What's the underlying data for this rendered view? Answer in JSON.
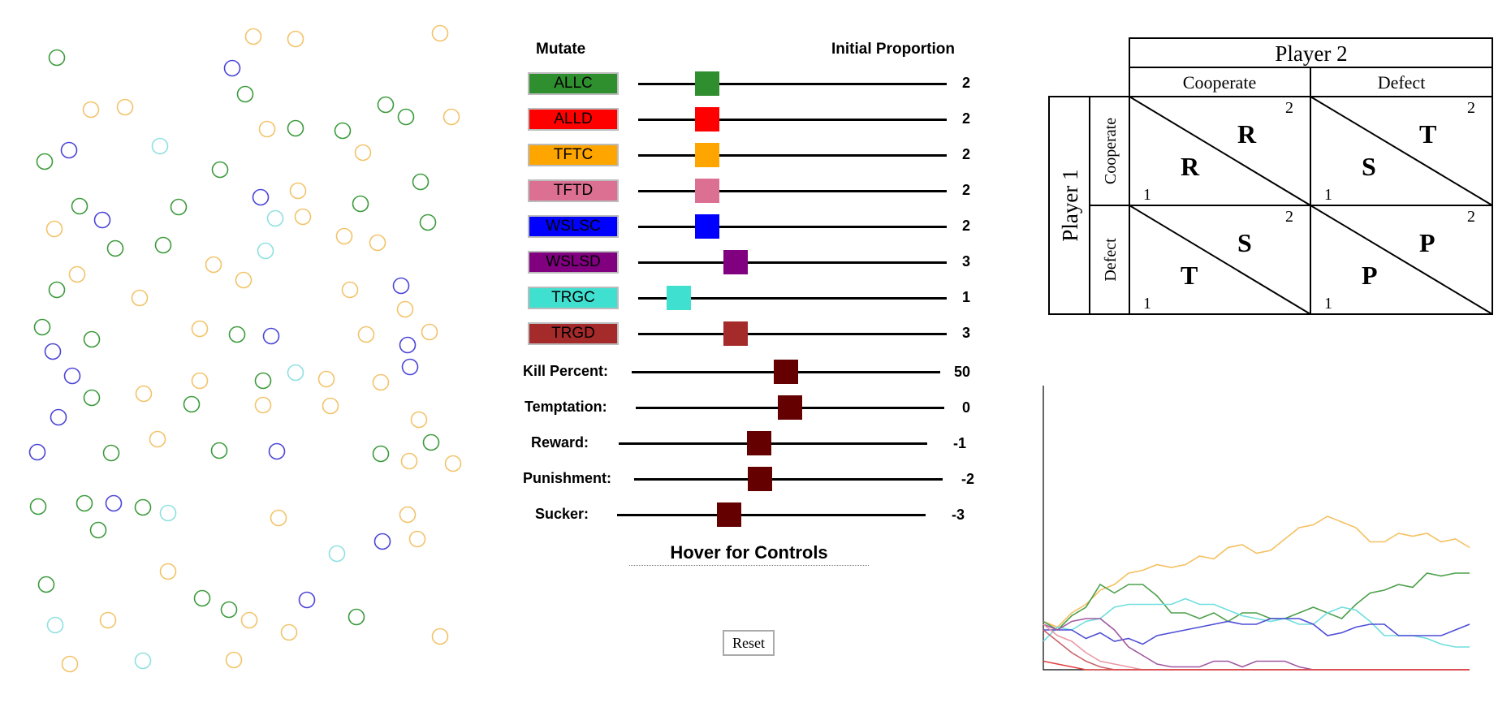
{
  "colors": {
    "allc": "#2f8f2f",
    "alld": "#ff0000",
    "tftc": "#ffa500",
    "tftd": "#db7093",
    "wslsc": "#0000ff",
    "wslsd": "#800080",
    "trgc": "#40e0d0",
    "trgd": "#a52a2a",
    "param_thumb": "#650000"
  },
  "population": {
    "agents": [
      {
        "x": 70,
        "y": 71,
        "c": "g"
      },
      {
        "x": 312,
        "y": 45,
        "c": "o"
      },
      {
        "x": 364,
        "y": 48,
        "c": "o"
      },
      {
        "x": 542,
        "y": 41,
        "c": "o"
      },
      {
        "x": 286,
        "y": 84,
        "c": "b"
      },
      {
        "x": 302,
        "y": 116,
        "c": "g"
      },
      {
        "x": 112,
        "y": 135,
        "c": "o"
      },
      {
        "x": 154,
        "y": 132,
        "c": "o"
      },
      {
        "x": 475,
        "y": 129,
        "c": "g"
      },
      {
        "x": 500,
        "y": 144,
        "c": "g"
      },
      {
        "x": 556,
        "y": 144,
        "c": "o"
      },
      {
        "x": 329,
        "y": 159,
        "c": "o"
      },
      {
        "x": 364,
        "y": 158,
        "c": "g"
      },
      {
        "x": 422,
        "y": 161,
        "c": "g"
      },
      {
        "x": 85,
        "y": 185,
        "c": "b"
      },
      {
        "x": 197,
        "y": 180,
        "c": "t"
      },
      {
        "x": 447,
        "y": 188,
        "c": "o"
      },
      {
        "x": 55,
        "y": 199,
        "c": "g"
      },
      {
        "x": 271,
        "y": 209,
        "c": "g"
      },
      {
        "x": 518,
        "y": 224,
        "c": "g"
      },
      {
        "x": 367,
        "y": 235,
        "c": "o"
      },
      {
        "x": 321,
        "y": 243,
        "c": "b"
      },
      {
        "x": 98,
        "y": 254,
        "c": "g"
      },
      {
        "x": 126,
        "y": 271,
        "c": "b"
      },
      {
        "x": 220,
        "y": 255,
        "c": "g"
      },
      {
        "x": 339,
        "y": 269,
        "c": "t"
      },
      {
        "x": 373,
        "y": 267,
        "c": "o"
      },
      {
        "x": 444,
        "y": 251,
        "c": "g"
      },
      {
        "x": 67,
        "y": 282,
        "c": "o"
      },
      {
        "x": 527,
        "y": 274,
        "c": "g"
      },
      {
        "x": 424,
        "y": 291,
        "c": "o"
      },
      {
        "x": 465,
        "y": 299,
        "c": "o"
      },
      {
        "x": 142,
        "y": 306,
        "c": "g"
      },
      {
        "x": 201,
        "y": 302,
        "c": "g"
      },
      {
        "x": 327,
        "y": 309,
        "c": "t"
      },
      {
        "x": 263,
        "y": 326,
        "c": "o"
      },
      {
        "x": 95,
        "y": 338,
        "c": "o"
      },
      {
        "x": 300,
        "y": 345,
        "c": "o"
      },
      {
        "x": 70,
        "y": 357,
        "c": "g"
      },
      {
        "x": 172,
        "y": 367,
        "c": "o"
      },
      {
        "x": 431,
        "y": 357,
        "c": "o"
      },
      {
        "x": 494,
        "y": 352,
        "c": "b"
      },
      {
        "x": 499,
        "y": 381,
        "c": "o"
      },
      {
        "x": 52,
        "y": 403,
        "c": "g"
      },
      {
        "x": 246,
        "y": 405,
        "c": "o"
      },
      {
        "x": 292,
        "y": 412,
        "c": "g"
      },
      {
        "x": 334,
        "y": 414,
        "c": "b"
      },
      {
        "x": 113,
        "y": 418,
        "c": "g"
      },
      {
        "x": 451,
        "y": 412,
        "c": "o"
      },
      {
        "x": 529,
        "y": 409,
        "c": "o"
      },
      {
        "x": 65,
        "y": 433,
        "c": "b"
      },
      {
        "x": 502,
        "y": 425,
        "c": "b"
      },
      {
        "x": 89,
        "y": 463,
        "c": "b"
      },
      {
        "x": 246,
        "y": 469,
        "c": "o"
      },
      {
        "x": 324,
        "y": 469,
        "c": "g"
      },
      {
        "x": 364,
        "y": 459,
        "c": "t"
      },
      {
        "x": 402,
        "y": 467,
        "c": "o"
      },
      {
        "x": 469,
        "y": 471,
        "c": "o"
      },
      {
        "x": 505,
        "y": 452,
        "c": "b"
      },
      {
        "x": 177,
        "y": 485,
        "c": "o"
      },
      {
        "x": 113,
        "y": 490,
        "c": "g"
      },
      {
        "x": 236,
        "y": 498,
        "c": "g"
      },
      {
        "x": 324,
        "y": 499,
        "c": "o"
      },
      {
        "x": 407,
        "y": 500,
        "c": "o"
      },
      {
        "x": 72,
        "y": 514,
        "c": "b"
      },
      {
        "x": 516,
        "y": 517,
        "c": "o"
      },
      {
        "x": 194,
        "y": 541,
        "c": "o"
      },
      {
        "x": 531,
        "y": 545,
        "c": "g"
      },
      {
        "x": 46,
        "y": 557,
        "c": "b"
      },
      {
        "x": 137,
        "y": 558,
        "c": "g"
      },
      {
        "x": 270,
        "y": 555,
        "c": "g"
      },
      {
        "x": 341,
        "y": 556,
        "c": "b"
      },
      {
        "x": 469,
        "y": 559,
        "c": "g"
      },
      {
        "x": 504,
        "y": 568,
        "c": "o"
      },
      {
        "x": 558,
        "y": 571,
        "c": "o"
      },
      {
        "x": 47,
        "y": 624,
        "c": "g"
      },
      {
        "x": 104,
        "y": 620,
        "c": "g"
      },
      {
        "x": 140,
        "y": 620,
        "c": "b"
      },
      {
        "x": 176,
        "y": 625,
        "c": "g"
      },
      {
        "x": 207,
        "y": 632,
        "c": "t"
      },
      {
        "x": 343,
        "y": 638,
        "c": "o"
      },
      {
        "x": 502,
        "y": 634,
        "c": "o"
      },
      {
        "x": 121,
        "y": 653,
        "c": "g"
      },
      {
        "x": 471,
        "y": 667,
        "c": "b"
      },
      {
        "x": 514,
        "y": 664,
        "c": "o"
      },
      {
        "x": 415,
        "y": 682,
        "c": "t"
      },
      {
        "x": 207,
        "y": 704,
        "c": "o"
      },
      {
        "x": 57,
        "y": 720,
        "c": "g"
      },
      {
        "x": 249,
        "y": 737,
        "c": "g"
      },
      {
        "x": 378,
        "y": 739,
        "c": "b"
      },
      {
        "x": 282,
        "y": 751,
        "c": "g"
      },
      {
        "x": 68,
        "y": 770,
        "c": "t"
      },
      {
        "x": 133,
        "y": 764,
        "c": "o"
      },
      {
        "x": 307,
        "y": 764,
        "c": "o"
      },
      {
        "x": 439,
        "y": 760,
        "c": "g"
      },
      {
        "x": 356,
        "y": 779,
        "c": "o"
      },
      {
        "x": 542,
        "y": 784,
        "c": "o"
      },
      {
        "x": 86,
        "y": 818,
        "c": "o"
      },
      {
        "x": 176,
        "y": 814,
        "c": "t"
      },
      {
        "x": 288,
        "y": 813,
        "c": "o"
      }
    ],
    "palette": {
      "g": "#3c9a3c",
      "o": "#f2c36a",
      "b": "#4a45d6",
      "t": "#8fe0e0"
    }
  },
  "controls": {
    "mutate_label": "Mutate",
    "initial_proportion_label": "Initial Proportion",
    "strategies": [
      {
        "key": "allc",
        "label": "ALLC",
        "value": "2",
        "fraction": 0.2
      },
      {
        "key": "alld",
        "label": "ALLD",
        "value": "2",
        "fraction": 0.2
      },
      {
        "key": "tftc",
        "label": "TFTC",
        "value": "2",
        "fraction": 0.2
      },
      {
        "key": "tftd",
        "label": "TFTD",
        "value": "2",
        "fraction": 0.2
      },
      {
        "key": "wslsc",
        "label": "WSLSC",
        "value": "2",
        "fraction": 0.2
      },
      {
        "key": "wslsd",
        "label": "WSLSD",
        "value": "3",
        "fraction": 0.3
      },
      {
        "key": "trgc",
        "label": "TRGC",
        "value": "1",
        "fraction": 0.1
      },
      {
        "key": "trgd",
        "label": "TRGD",
        "value": "3",
        "fraction": 0.3
      }
    ],
    "params": [
      {
        "key": "kill",
        "label": "Kill Percent:",
        "value": "50",
        "fraction": 0.5
      },
      {
        "key": "temptation",
        "label": "Temptation:",
        "value": "0",
        "fraction": 0.5
      },
      {
        "key": "reward",
        "label": "Reward:",
        "value": "-1",
        "fraction": 0.45
      },
      {
        "key": "punishment",
        "label": "Punishment:",
        "value": "-2",
        "fraction": 0.4
      },
      {
        "key": "sucker",
        "label": "Sucker:",
        "value": "-3",
        "fraction": 0.35
      }
    ],
    "hover_label": "Hover for Controls",
    "reset_label": "Reset"
  },
  "payoff_matrix": {
    "player2": "Player 2",
    "player1": "Player 1",
    "col_labels": [
      "Cooperate",
      "Defect"
    ],
    "row_labels": [
      "Cooperate",
      "Defect"
    ],
    "cells": [
      [
        {
          "p1": "R",
          "p2": "R"
        },
        {
          "p1": "S",
          "p2": "T"
        }
      ],
      [
        {
          "p1": "T",
          "p2": "S"
        },
        {
          "p1": "P",
          "p2": "P"
        }
      ]
    ],
    "corner_p1": "1",
    "corner_p2": "2"
  },
  "chart_data": {
    "type": "line",
    "x": [
      0,
      1,
      2,
      3,
      4,
      5,
      6,
      7,
      8,
      9,
      10,
      11,
      12,
      13,
      14,
      15,
      16,
      17,
      18,
      19,
      20,
      21,
      22,
      23,
      24,
      25,
      26,
      27,
      28,
      29,
      30
    ],
    "ylim": [
      0,
      1
    ],
    "series": [
      {
        "key": "tftc",
        "color": "#f5c060",
        "values": [
          0.17,
          0.15,
          0.2,
          0.23,
          0.28,
          0.3,
          0.34,
          0.35,
          0.37,
          0.36,
          0.37,
          0.4,
          0.39,
          0.43,
          0.44,
          0.41,
          0.42,
          0.46,
          0.5,
          0.51,
          0.54,
          0.52,
          0.5,
          0.45,
          0.45,
          0.48,
          0.47,
          0.48,
          0.45,
          0.46,
          0.43
        ]
      },
      {
        "key": "allc",
        "color": "#4ca04c",
        "values": [
          0.17,
          0.14,
          0.19,
          0.22,
          0.3,
          0.27,
          0.3,
          0.3,
          0.26,
          0.2,
          0.2,
          0.18,
          0.2,
          0.17,
          0.2,
          0.2,
          0.18,
          0.18,
          0.2,
          0.22,
          0.2,
          0.18,
          0.23,
          0.27,
          0.28,
          0.3,
          0.29,
          0.34,
          0.33,
          0.34,
          0.34
        ]
      },
      {
        "key": "trgc",
        "color": "#70dede",
        "values": [
          0.1,
          0.15,
          0.14,
          0.17,
          0.18,
          0.22,
          0.23,
          0.23,
          0.23,
          0.23,
          0.25,
          0.23,
          0.23,
          0.21,
          0.19,
          0.18,
          0.17,
          0.18,
          0.16,
          0.16,
          0.2,
          0.22,
          0.21,
          0.17,
          0.12,
          0.12,
          0.12,
          0.11,
          0.09,
          0.08,
          0.08
        ]
      },
      {
        "key": "wslsc",
        "color": "#4d4dd6",
        "values": [
          0.14,
          0.14,
          0.14,
          0.11,
          0.13,
          0.1,
          0.11,
          0.09,
          0.12,
          0.13,
          0.14,
          0.15,
          0.16,
          0.17,
          0.16,
          0.16,
          0.18,
          0.18,
          0.18,
          0.16,
          0.12,
          0.13,
          0.15,
          0.16,
          0.16,
          0.12,
          0.12,
          0.12,
          0.12,
          0.14,
          0.16
        ]
      },
      {
        "key": "wslsd",
        "color": "#a058a0",
        "values": [
          0.16,
          0.14,
          0.17,
          0.18,
          0.18,
          0.14,
          0.08,
          0.05,
          0.02,
          0.01,
          0.01,
          0.01,
          0.03,
          0.03,
          0.01,
          0.03,
          0.03,
          0.03,
          0.01,
          0,
          0,
          0,
          0,
          0,
          0,
          0,
          0,
          0,
          0,
          0,
          0
        ]
      },
      {
        "key": "tftd",
        "color": "#e89aa6",
        "values": [
          0.16,
          0.12,
          0.1,
          0.06,
          0.03,
          0.02,
          0.01,
          0,
          0,
          0,
          0,
          0,
          0,
          0,
          0,
          0,
          0,
          0,
          0,
          0,
          0,
          0,
          0,
          0,
          0,
          0,
          0,
          0,
          0,
          0,
          0
        ]
      },
      {
        "key": "trgd",
        "color": "#c8646a",
        "values": [
          0.14,
          0.1,
          0.06,
          0.03,
          0.01,
          0,
          0,
          0,
          0,
          0,
          0,
          0,
          0,
          0,
          0,
          0,
          0,
          0,
          0,
          0,
          0,
          0,
          0,
          0,
          0,
          0,
          0,
          0,
          0,
          0,
          0
        ]
      },
      {
        "key": "alld",
        "color": "#e04040",
        "values": [
          0.03,
          0.02,
          0.01,
          0,
          0,
          0,
          0,
          0,
          0,
          0,
          0,
          0,
          0,
          0,
          0,
          0,
          0,
          0,
          0,
          0,
          0,
          0,
          0,
          0,
          0,
          0,
          0,
          0,
          0,
          0,
          0
        ]
      }
    ]
  }
}
